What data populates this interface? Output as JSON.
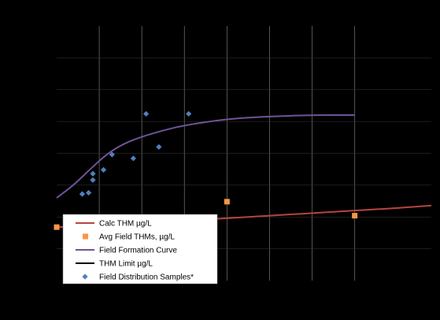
{
  "chart_data": {
    "type": "line",
    "title": "",
    "xlabel": "",
    "ylabel": "",
    "grid": true,
    "legend_position": "bottom-left",
    "xlim": [
      -1,
      7.8
    ],
    "ylim": [
      0,
      2
    ],
    "series": [
      {
        "name": "Calc THM µg/L",
        "kind": "line",
        "color": "#b5453f",
        "x": [
          -1,
          0,
          1,
          2,
          3,
          4,
          5,
          6,
          7,
          7.8
        ],
        "y": [
          0.42,
          0.43,
          0.45,
          0.47,
          0.49,
          0.51,
          0.53,
          0.55,
          0.57,
          0.59
        ]
      },
      {
        "name": "Avg Field THMs, µg/L",
        "kind": "scatter",
        "marker": "square",
        "color": "#f79646",
        "x": [
          -1,
          0,
          1,
          3,
          6
        ],
        "y": [
          0.42,
          0.41,
          0.42,
          0.62,
          0.51
        ]
      },
      {
        "name": "Field Formation Curve",
        "kind": "line",
        "color": "#6f5497",
        "x": [
          -1,
          -0.6,
          -0.2,
          0.2,
          0.6,
          1.0,
          1.5,
          2,
          3,
          4,
          5,
          6
        ],
        "y": [
          0.65,
          0.75,
          0.88,
          1.0,
          1.08,
          1.13,
          1.18,
          1.22,
          1.27,
          1.29,
          1.3,
          1.3
        ]
      },
      {
        "name": "THM Limit µg/L",
        "kind": "line",
        "color": "#000000",
        "x": [],
        "y": []
      },
      {
        "name": "Field Distribution Samples*",
        "kind": "scatter",
        "marker": "diamond",
        "color": "#4f81bd",
        "x": [
          -0.4,
          -0.25,
          -0.15,
          -0.15,
          0.1,
          0.3,
          1.1,
          0.8,
          1.4,
          2.1
        ],
        "y": [
          0.68,
          0.69,
          0.79,
          0.84,
          0.87,
          0.99,
          1.31,
          0.96,
          1.05,
          1.31
        ]
      }
    ]
  }
}
